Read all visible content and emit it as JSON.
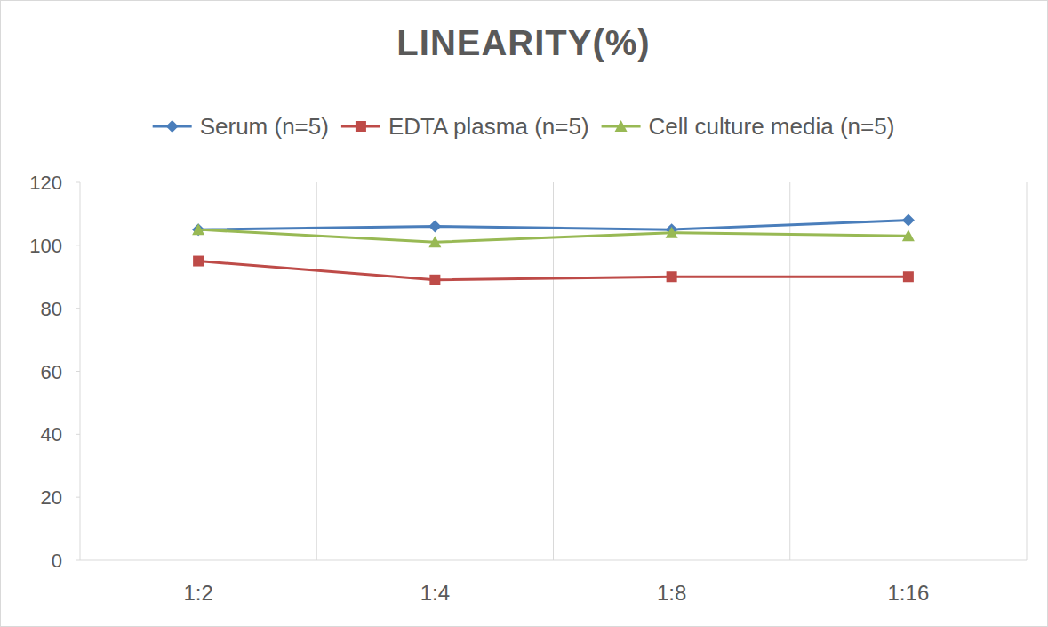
{
  "chart_data": {
    "type": "line",
    "title": "LINEARITY(%)",
    "categories": [
      "1:2",
      "1:4",
      "1:8",
      "1:16"
    ],
    "series": [
      {
        "name": "Serum (n=5)",
        "color": "#4a7ebb",
        "marker": "diamond",
        "values": [
          105,
          106,
          105,
          108
        ]
      },
      {
        "name": "EDTA plasma (n=5)",
        "color": "#be4b48",
        "marker": "square",
        "values": [
          95,
          89,
          90,
          90
        ]
      },
      {
        "name": "Cell culture media (n=5)",
        "color": "#98b954",
        "marker": "triangle",
        "values": [
          105,
          101,
          104,
          103
        ]
      }
    ],
    "ylim": [
      0,
      120
    ],
    "yticks": [
      0,
      20,
      40,
      60,
      80,
      100,
      120
    ],
    "grid": true,
    "legend": "top"
  }
}
